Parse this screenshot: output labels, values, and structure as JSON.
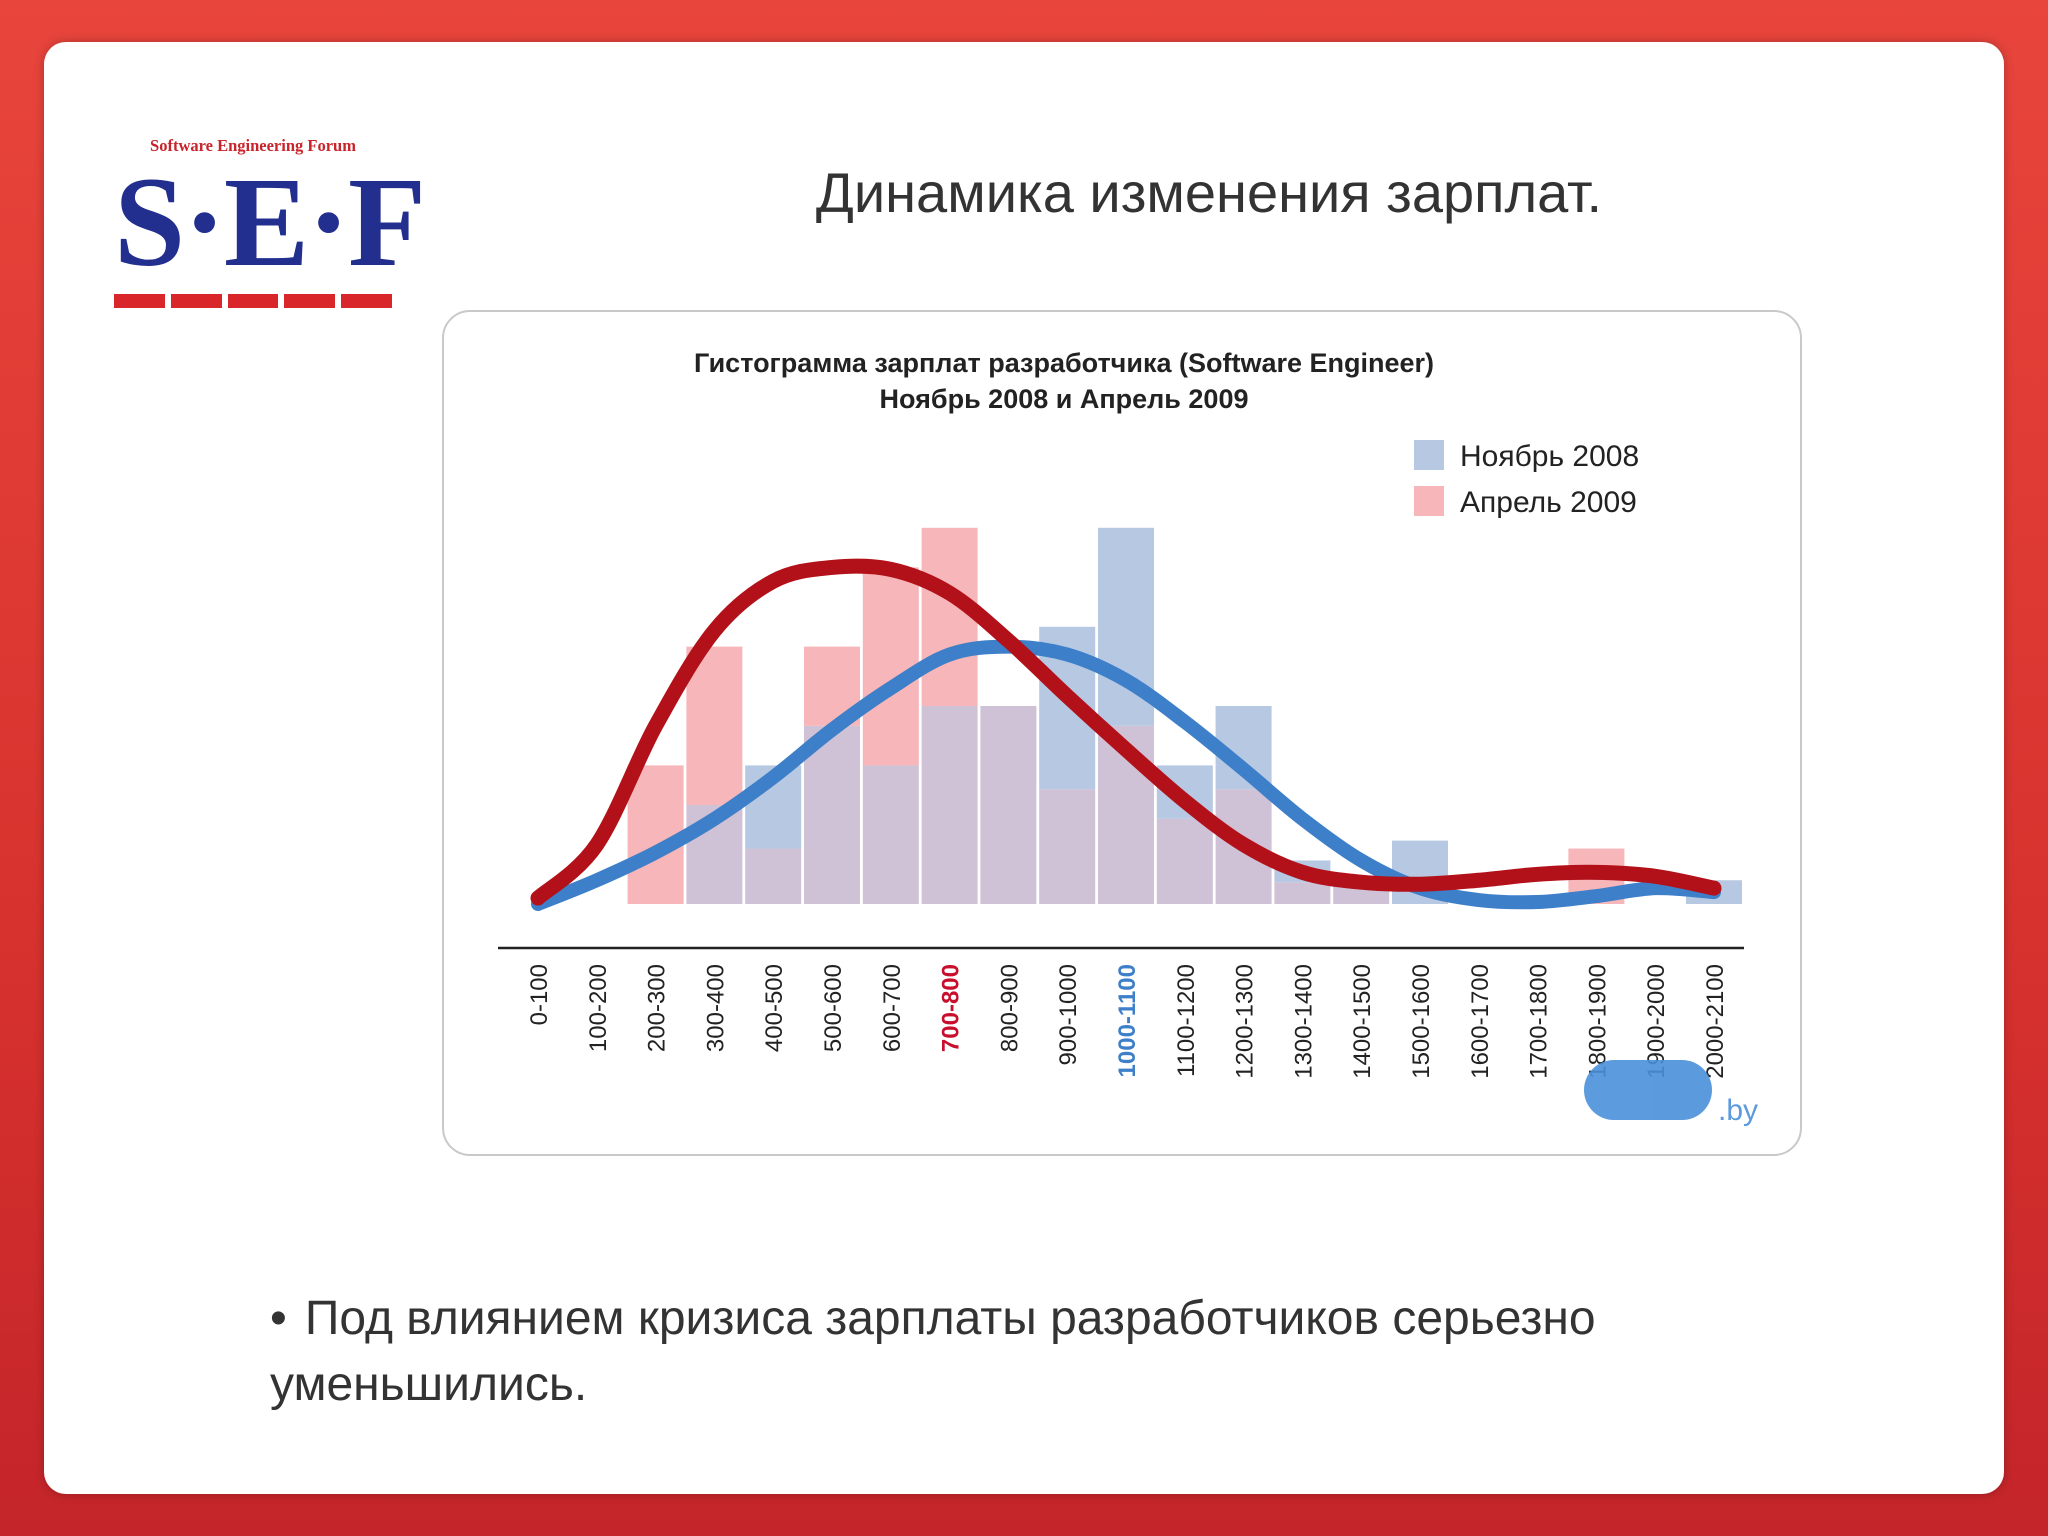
{
  "logo": {
    "caption": "Software Engineering Forum",
    "mark": "S·E·F"
  },
  "slide": {
    "title": "Динамика изменения зарплат.",
    "bullet": "Под влиянием кризиса зарплаты разработчиков серьезно уменьшились."
  },
  "watermark": {
    "text": ".by"
  },
  "colors": {
    "nov_bar": "#b7c8e2",
    "apr_bar": "#f7b6b9",
    "overlap": "#cfc1d6",
    "nov_line": "#3d7fc9",
    "apr_line": "#b3111a",
    "red_label": "#c8102e",
    "blue_label": "#3d7fc9"
  },
  "chart_data": {
    "type": "bar",
    "title": "Гистограмма зарплат разработчика (Software Engineer)",
    "subtitle": "Ноябрь 2008 и Апрель 2009",
    "xlabel": "",
    "ylabel": "",
    "categories": [
      "0-100",
      "100-200",
      "200-300",
      "300-400",
      "400-500",
      "500-600",
      "600-700",
      "700-800",
      "800-900",
      "900-1000",
      "1000-1100",
      "1100-1200",
      "1200-1300",
      "1300-1400",
      "1400-1500",
      "1500-1600",
      "1600-1700",
      "1700-1800",
      "1800-1900",
      "1900-2000",
      "2000-2100"
    ],
    "highlight": {
      "700-800": "red_label",
      "1000-1100": "blue_label"
    },
    "series": [
      {
        "name": "Ноябрь 2008",
        "color": "nov_bar",
        "values": [
          0,
          0,
          0,
          5.0,
          7.0,
          9.0,
          7.0,
          10.0,
          10.0,
          14.0,
          19.0,
          7.0,
          10.0,
          2.2,
          1.1,
          3.2,
          0,
          0,
          0,
          0,
          1.2
        ]
      },
      {
        "name": "Апрель 2009",
        "color": "apr_bar",
        "values": [
          0,
          0,
          7.0,
          13.0,
          2.8,
          13.0,
          17.0,
          19.0,
          10.0,
          5.8,
          9.0,
          4.3,
          5.8,
          1.1,
          1.2,
          0,
          0,
          0,
          2.8,
          0,
          0
        ]
      }
    ],
    "trend_lines": [
      {
        "series": "Ноябрь 2008",
        "color": "nov_line",
        "values": [
          0,
          1.2,
          2.6,
          4.3,
          6.4,
          8.8,
          10.9,
          12.6,
          13.0,
          12.6,
          11.3,
          9.2,
          6.8,
          4.3,
          2.2,
          0.8,
          0.2,
          0.1,
          0.4,
          0.8,
          0.6
        ]
      },
      {
        "series": "Апрель 2009",
        "color": "apr_line",
        "values": [
          0.3,
          3.0,
          9.0,
          13.8,
          16.3,
          17.0,
          16.9,
          15.7,
          13.3,
          10.5,
          7.8,
          5.2,
          3.0,
          1.6,
          1.1,
          1.0,
          1.2,
          1.5,
          1.6,
          1.4,
          0.8
        ]
      }
    ],
    "ylim": [
      0,
      20
    ],
    "grid": false,
    "legend": "top-right"
  }
}
